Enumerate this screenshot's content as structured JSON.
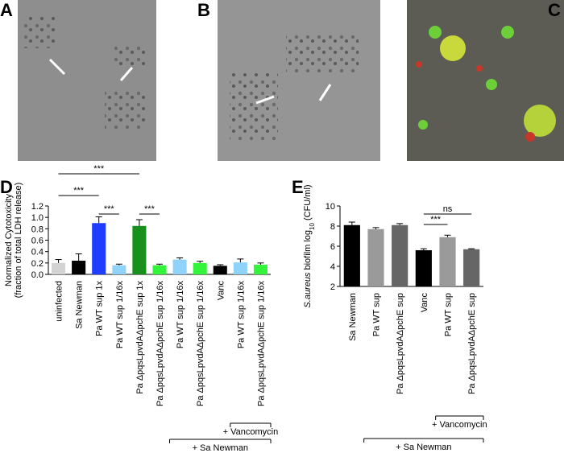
{
  "images": [
    {
      "label": "A"
    },
    {
      "label": "B"
    },
    {
      "label": "C"
    }
  ],
  "chart_data": [
    {
      "type": "bar",
      "panel_label": "D",
      "ylabel": [
        "Normalized Cytotoxicity",
        "(fraction of total LDH release)"
      ],
      "categories": [
        "uninfected",
        "Sa Newman",
        "Pa WT sup 1x",
        "Pa WT sup 1/16x",
        "Pa ΔpqsLpvdAΔpchE sup 1x",
        "Pa ΔpqsLpvdAΔpchE sup 1/16x",
        "Pa WT sup 1/16x",
        "Pa ΔpqsLpvdAΔpchE sup 1/16x",
        "Vanc",
        "Pa WT sup 1/16x",
        "Pa ΔpqsLpvdAΔpchE sup 1/16x"
      ],
      "values": [
        0.2,
        0.24,
        0.9,
        0.16,
        0.85,
        0.16,
        0.26,
        0.2,
        0.15,
        0.21,
        0.17
      ],
      "errors": [
        0.06,
        0.12,
        0.11,
        0.02,
        0.11,
        0.02,
        0.03,
        0.03,
        0.02,
        0.06,
        0.03
      ],
      "colors": [
        "#d3d3d3",
        "#000000",
        "#1f3dff",
        "#8fd3fb",
        "#17911b",
        "#33f33a",
        "#8fd3fb",
        "#33f33a",
        "#000000",
        "#8fd3fb",
        "#33f33a"
      ],
      "ylim": [
        0,
        1.2
      ],
      "yticks": [
        {
          "value": 0,
          "label": "0.0"
        },
        0.2,
        0.4,
        0.6,
        0.8,
        {
          "value": 1,
          "label": "1.0"
        },
        1.2
      ],
      "annotations": [
        "***",
        "***",
        "***",
        "***"
      ],
      "groups": [
        "+ Vancomycin",
        "+ Sa Newman"
      ]
    },
    {
      "type": "bar",
      "panel_label": "E",
      "ylabel": [
        "S.aureus",
        " biofilm log",
        "10",
        " (CFU/ml)"
      ],
      "categories": [
        "Sa Newman",
        "Pa WT sup",
        "Pa ΔpqsLpvdAΔpchE sup",
        "Vanc",
        "Pa WT sup",
        "Pa ΔpqsLpvdAΔpchE sup"
      ],
      "values": [
        8.1,
        7.7,
        8.1,
        5.6,
        6.9,
        5.7
      ],
      "errors": [
        0.3,
        0.15,
        0.15,
        0.15,
        0.2,
        0.05
      ],
      "colors": [
        "#000000",
        "#9a9a9a",
        "#666666",
        "#000000",
        "#9a9a9a",
        "#666666"
      ],
      "ylim": [
        2,
        10
      ],
      "yticks": [
        2,
        4,
        6,
        8,
        10
      ],
      "annotations": [
        "***",
        "ns"
      ],
      "groups": [
        "+ Vancomycin",
        "+ Sa Newman"
      ]
    }
  ]
}
